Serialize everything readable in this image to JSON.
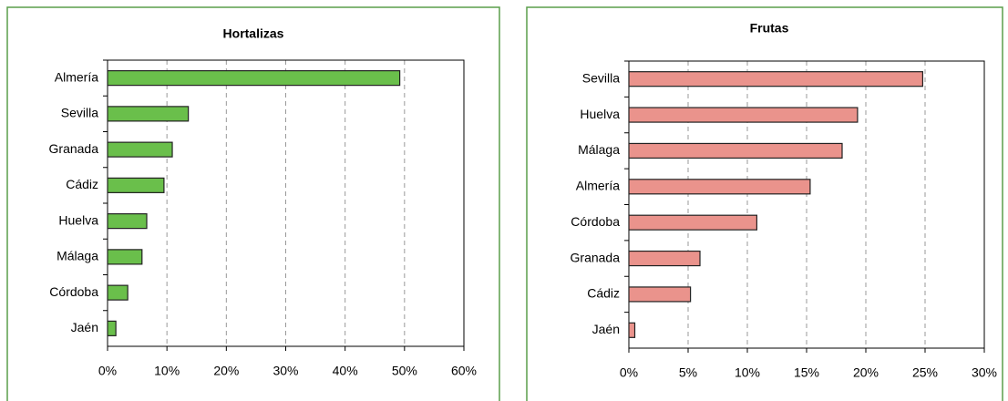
{
  "chart_data": [
    {
      "type": "bar",
      "title": "Hortalizas",
      "categories": [
        "Almería",
        "Sevilla",
        "Granada",
        "Cádiz",
        "Huelva",
        "Málaga",
        "Córdoba",
        "Jaén"
      ],
      "values": [
        49.2,
        13.6,
        10.9,
        9.5,
        6.6,
        5.8,
        3.4,
        1.4
      ],
      "color": "#6abf4b",
      "xlim": [
        0,
        60
      ],
      "xticks": [
        {
          "value": 0,
          "label": "0%"
        },
        {
          "value": 10,
          "label": "10%"
        },
        {
          "value": 20,
          "label": "20%"
        },
        {
          "value": 30,
          "label": "30%"
        },
        {
          "value": 40,
          "label": "40%"
        },
        {
          "value": 50,
          "label": "50%"
        },
        {
          "value": 60,
          "label": "60%"
        }
      ],
      "grid": true
    },
    {
      "type": "bar",
      "title": "Frutas",
      "categories": [
        "Sevilla",
        "Huelva",
        "Málaga",
        "Almería",
        "Córdoba",
        "Granada",
        "Cádiz",
        "Jaén"
      ],
      "values": [
        24.8,
        19.3,
        18.0,
        15.3,
        10.8,
        6.0,
        5.2,
        0.5
      ],
      "color": "#ea938c",
      "xlim": [
        0,
        30
      ],
      "xticks": [
        {
          "value": 0,
          "label": "0%"
        },
        {
          "value": 5,
          "label": "5%"
        },
        {
          "value": 10,
          "label": "10%"
        },
        {
          "value": 15,
          "label": "15%"
        },
        {
          "value": 20,
          "label": "20%"
        },
        {
          "value": 25,
          "label": "25%"
        },
        {
          "value": 30,
          "label": "30%"
        }
      ],
      "grid": true
    }
  ]
}
